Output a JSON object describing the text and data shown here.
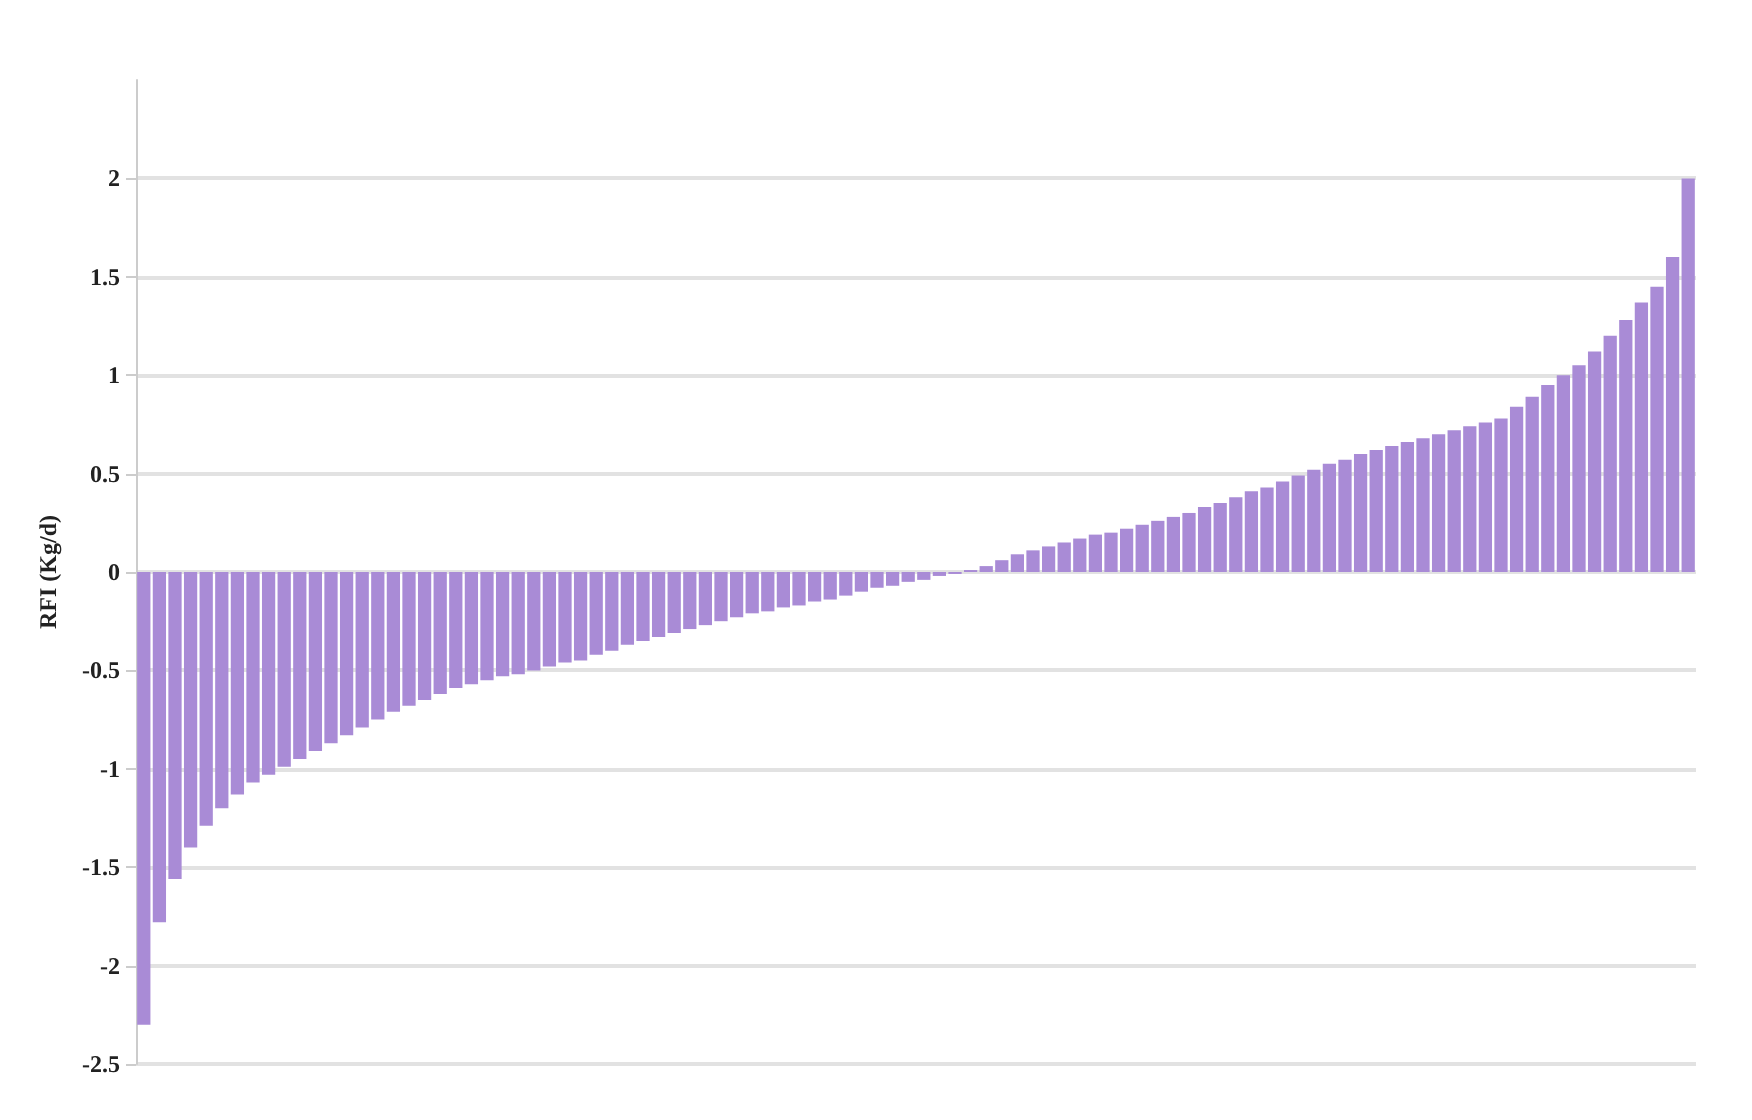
{
  "chart_data": {
    "type": "bar",
    "ylabel": "RFI (Kg/d)",
    "color": "#a98bd6",
    "grid": "y",
    "ylim": [
      -2.5,
      2.5
    ],
    "yticks": [
      -2.5,
      -2,
      -1.5,
      -1,
      -0.5,
      0,
      0.5,
      1,
      1.5,
      2
    ],
    "categories": [
      null,
      null,
      null,
      null,
      null,
      null,
      null,
      null,
      null,
      null,
      null,
      null,
      null,
      null,
      null,
      null,
      null,
      null,
      null,
      null,
      null,
      null,
      null,
      null,
      null,
      null,
      null,
      null,
      null,
      null,
      null,
      null,
      null,
      null,
      null,
      null,
      null,
      null,
      null,
      null,
      null,
      null,
      null,
      null,
      null,
      null,
      null,
      null,
      null,
      null,
      null,
      null,
      null,
      null,
      null,
      null,
      null,
      null,
      null,
      null,
      null,
      null,
      null,
      null,
      null,
      null,
      null,
      null,
      null,
      null,
      null,
      null,
      null,
      null,
      null,
      null,
      null,
      null,
      null,
      null,
      null,
      null,
      null,
      null,
      null,
      null,
      null,
      null,
      null,
      null,
      null,
      null,
      null,
      null,
      null,
      null,
      null,
      null,
      null,
      null
    ],
    "values": [
      -2.3,
      -1.78,
      -1.56,
      -1.4,
      -1.29,
      -1.2,
      -1.13,
      -1.07,
      -1.03,
      -0.99,
      -0.95,
      -0.91,
      -0.87,
      -0.83,
      -0.79,
      -0.75,
      -0.71,
      -0.68,
      -0.65,
      -0.62,
      -0.59,
      -0.57,
      -0.55,
      -0.53,
      -0.52,
      -0.5,
      -0.48,
      -0.46,
      -0.45,
      -0.42,
      -0.4,
      -0.37,
      -0.35,
      -0.33,
      -0.31,
      -0.29,
      -0.27,
      -0.25,
      -0.23,
      -0.21,
      -0.2,
      -0.18,
      -0.17,
      -0.15,
      -0.14,
      -0.12,
      -0.1,
      -0.08,
      -0.07,
      -0.05,
      -0.04,
      -0.02,
      -0.01,
      0.01,
      0.03,
      0.06,
      0.09,
      0.11,
      0.13,
      0.15,
      0.17,
      0.19,
      0.2,
      0.22,
      0.24,
      0.26,
      0.28,
      0.3,
      0.33,
      0.35,
      0.38,
      0.41,
      0.43,
      0.46,
      0.49,
      0.52,
      0.55,
      0.57,
      0.6,
      0.62,
      0.64,
      0.66,
      0.68,
      0.7,
      0.72,
      0.74,
      0.76,
      0.78,
      0.84,
      0.89,
      0.95,
      1.0,
      1.05,
      1.12,
      1.2,
      1.28,
      1.37,
      1.45,
      1.6,
      2.0
    ]
  }
}
